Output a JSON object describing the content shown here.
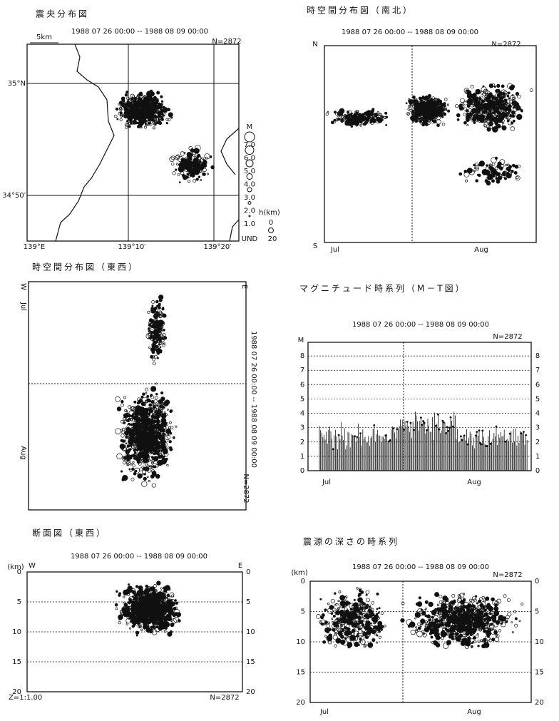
{
  "panels": [
    {
      "title": "震央分布図",
      "period": "1988 07 26 00:00 -- 1988 08 09 00:00",
      "count": "N=2872",
      "scale": "5km",
      "lat_labels": [
        "35°N",
        "34°50′"
      ],
      "lon_labels": [
        "139°E",
        "139°10′",
        "139°20′"
      ],
      "magnitude_legend": {
        "title": "M",
        "labels": [
          "7.0",
          "6.0",
          "5.0",
          "4.0",
          "3.0",
          "2.0",
          "1.0",
          "UND"
        ]
      },
      "depth_legend": {
        "title": "h(km)",
        "labels": [
          "0",
          "20"
        ]
      }
    },
    {
      "title": "時空間分布図（南北）",
      "period": "1988 07 26 00:00 -- 1988 08 09 00:00",
      "count": "N=2872",
      "north": "N",
      "south": "S",
      "months": [
        "Jul",
        "Aug"
      ]
    },
    {
      "title": "時空間分布図（東西）",
      "period": "1988 07 26 00:00 -- 1988 08 09 00:00",
      "count": "N=2872",
      "west": "W",
      "east": "E",
      "months": [
        "Jul",
        "Aug"
      ]
    },
    {
      "title": "マグニチュード時系列（M－T図）",
      "period": "1988 07 26 00:00 -- 1988 08 09 00:00",
      "count": "N=2872",
      "axis_label": "M",
      "yticks": [
        0,
        1,
        2,
        3,
        4,
        5,
        6,
        7,
        8
      ],
      "months": [
        "Jul",
        "Aug"
      ]
    },
    {
      "title": "断面図（東西）",
      "period": "1988 07 26 00:00 -- 1988 08 09 00:00",
      "count": "N=2872",
      "axis_label": "(km)",
      "west": "W",
      "east": "E",
      "yticks": [
        0,
        5,
        10,
        15,
        20
      ],
      "scale_ratio": "Z=1:1.00"
    },
    {
      "title": "震源の深さの時系列",
      "period": "1988 07 26 00:00 -- 1988 08 09 00:00",
      "count": "N=2872",
      "axis_label": "(km)",
      "yticks": [
        0,
        5,
        10,
        15,
        20
      ],
      "months": [
        "Jul",
        "Aug"
      ]
    }
  ]
}
